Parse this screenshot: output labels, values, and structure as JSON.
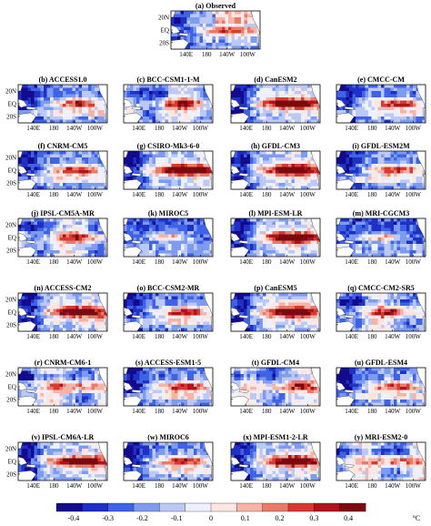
{
  "chart_data": {
    "type": "heatmap",
    "variable_unit": "°C",
    "lon_ticks": [
      "140E",
      "180",
      "140W",
      "100W"
    ],
    "lat_ticks": [
      "20N",
      "EQ",
      "20S"
    ],
    "colorbar": {
      "ticks": [
        "-0.4",
        "-0.3",
        "-0.2",
        "-0.1",
        "0",
        "0.1",
        "0.2",
        "0.3",
        "0.4"
      ],
      "range": [
        -0.45,
        0.45
      ],
      "colors": [
        "#140a8c",
        "#1f30c4",
        "#3f63e6",
        "#7e9bf2",
        "#bcc9f6",
        "#eef0fb",
        "#fbe6e2",
        "#f6b3a6",
        "#eb7a69",
        "#d83a32",
        "#b0131b",
        "#7a0a10"
      ],
      "unit": "°C"
    },
    "panels": [
      {
        "label": "(a) Observed",
        "pattern": "observed"
      },
      {
        "label": "(b) ACCESS1.0",
        "pattern": "tongue_warm"
      },
      {
        "label": "(c) BCC-CSM1-1-M",
        "pattern": "mixed"
      },
      {
        "label": "(d) CanESM2",
        "pattern": "strong_warm"
      },
      {
        "label": "(e) CMCC-CM",
        "pattern": "tongue_warm"
      },
      {
        "label": "(f) CNRM-CM5",
        "pattern": "tongue_warm"
      },
      {
        "label": "(g) CSIRO-Mk3-6-0",
        "pattern": "strong_warm"
      },
      {
        "label": "(h) GFDL-CM3",
        "pattern": "strong_warm"
      },
      {
        "label": "(i) GFDL-ESM2M",
        "pattern": "tongue_warm"
      },
      {
        "label": "(j) IPSL-CM5A-MR",
        "pattern": "mixed"
      },
      {
        "label": "(k) MIROC5",
        "pattern": "cold_dominant"
      },
      {
        "label": "(l) MPI-ESM-LR",
        "pattern": "strong_warm"
      },
      {
        "label": "(m) MRI-CGCM3",
        "pattern": "cold_dominant"
      },
      {
        "label": "(n) ACCESS-CM2",
        "pattern": "strong_warm"
      },
      {
        "label": "(o) BCC-CSM2-MR",
        "pattern": "tongue_warm"
      },
      {
        "label": "(p) CanESM5",
        "pattern": "strong_warm"
      },
      {
        "label": "(q) CMCC-CM2-SR5",
        "pattern": "mixed"
      },
      {
        "label": "(r) CNRM-CM6-1",
        "pattern": "mixed"
      },
      {
        "label": "(s) ACCESS-ESM1-5",
        "pattern": "tongue_warm"
      },
      {
        "label": "(t) GFDL-CM4",
        "pattern": "mixed"
      },
      {
        "label": "(u) GFDL-ESM4",
        "pattern": "tongue_warm"
      },
      {
        "label": "(v) IPSL-CM6A-LR",
        "pattern": "strong_warm"
      },
      {
        "label": "(w) MIROC6",
        "pattern": "tongue_warm"
      },
      {
        "label": "(x) MPI-ESM1-2-LR",
        "pattern": "strong_warm"
      },
      {
        "label": "(y) MRI-ESM2-0",
        "pattern": "mixed"
      }
    ]
  }
}
